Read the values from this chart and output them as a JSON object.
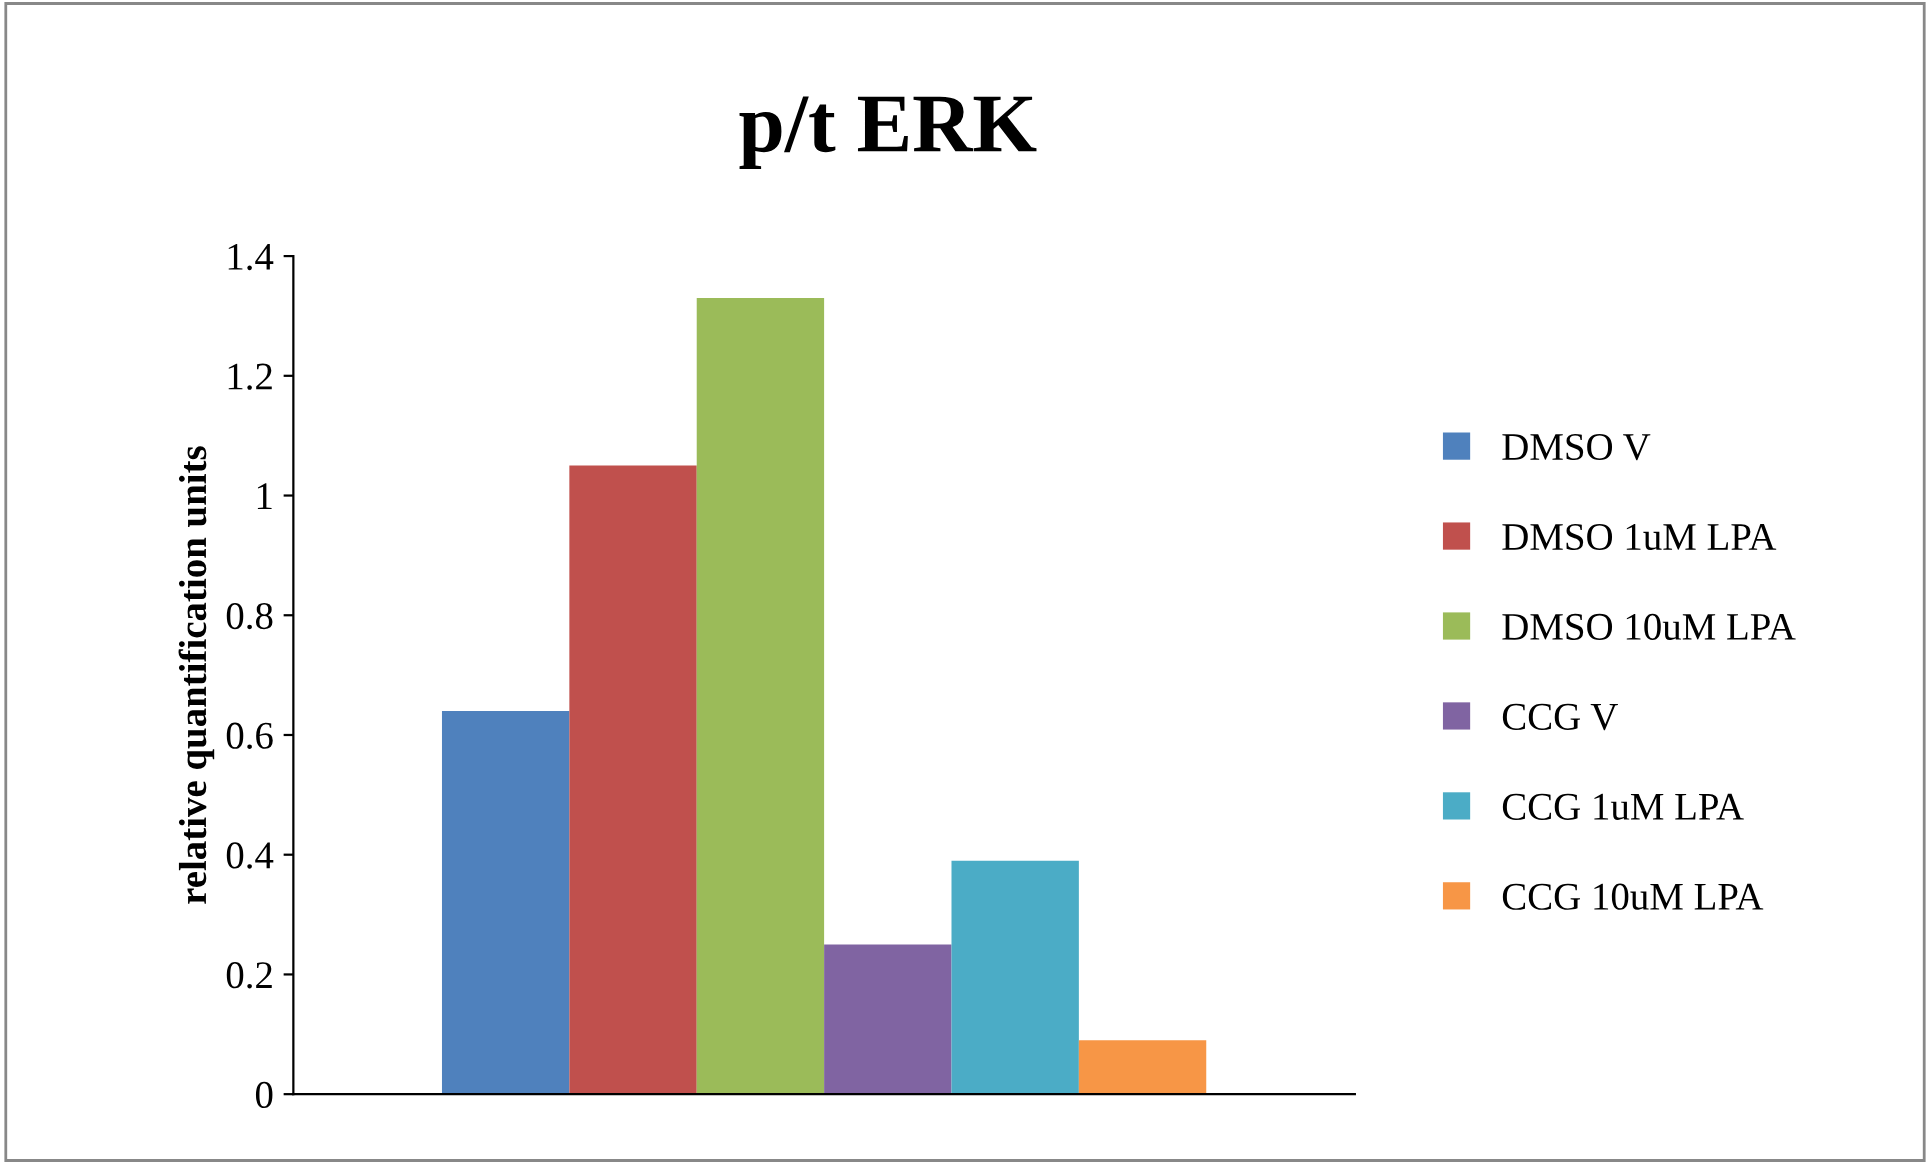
{
  "chart_data": {
    "type": "bar",
    "title": "p/t ERK",
    "ylabel": "relative quantification units",
    "categories": [
      null
    ],
    "series": [
      {
        "name": "DMSO V",
        "color": "#4f81bd",
        "values": [
          0.64
        ]
      },
      {
        "name": "DMSO 1uM LPA",
        "color": "#c0504d",
        "values": [
          1.05
        ]
      },
      {
        "name": "DMSO 10uM LPA",
        "color": "#9bbb59",
        "values": [
          1.33
        ]
      },
      {
        "name": "CCG V",
        "color": "#8064a2",
        "values": [
          0.25
        ]
      },
      {
        "name": "CCG 1uM LPA",
        "color": "#4bacc6",
        "values": [
          0.39
        ]
      },
      {
        "name": "CCG 10uM LPA",
        "color": "#f79646",
        "values": [
          0.09
        ]
      }
    ],
    "ylim": [
      0,
      1.4
    ],
    "yticks": [
      0,
      0.2,
      0.4,
      0.6,
      0.8,
      1,
      1.2,
      1.4
    ],
    "grid": false,
    "legend": "right"
  }
}
